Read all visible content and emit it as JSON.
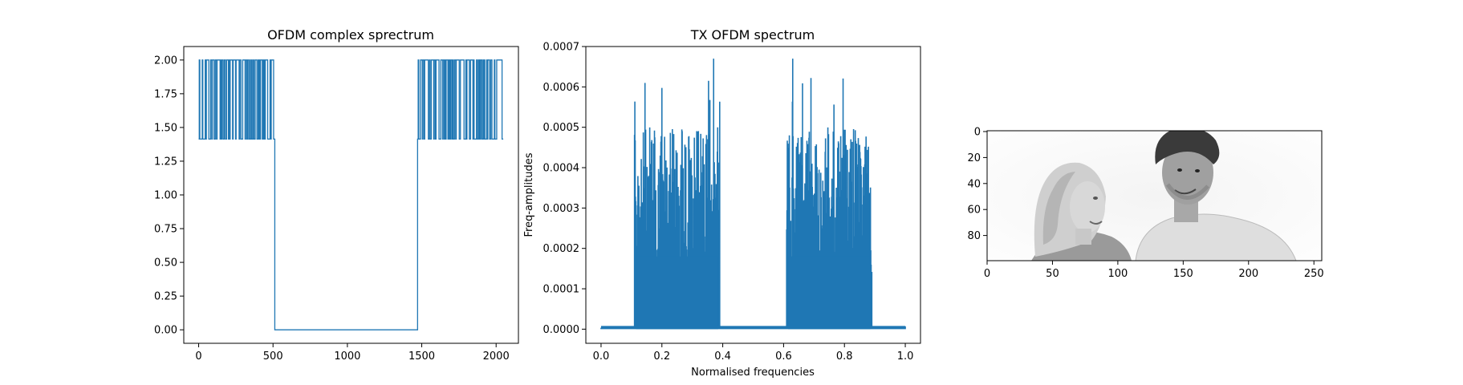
{
  "colors": {
    "series": "#1f77b4",
    "axes": "#000000"
  },
  "chart_data": [
    {
      "type": "line",
      "title": "OFDM complex sprectrum",
      "xlabel": "",
      "ylabel": "",
      "xlim": [
        -100,
        2150
      ],
      "ylim": [
        -0.1,
        2.1
      ],
      "xticks": [
        0,
        500,
        1000,
        1500,
        2000
      ],
      "xtick_labels": [
        "0",
        "500",
        "1000",
        "1500",
        "2000"
      ],
      "yticks": [
        0.0,
        0.25,
        0.5,
        0.75,
        1.0,
        1.25,
        1.5,
        1.75,
        2.0
      ],
      "ytick_labels": [
        "0.00",
        "0.25",
        "0.50",
        "0.75",
        "1.00",
        "1.25",
        "1.50",
        "1.75",
        "2.00"
      ],
      "grid": false,
      "series": [
        {
          "active_ranges": [
            [
              0,
              512
            ],
            [
              1472,
              2048
            ]
          ],
          "levels": [
            1.414,
            2.0
          ],
          "off_value": 0.0,
          "length": 2048
        }
      ]
    },
    {
      "type": "line",
      "title": "TX OFDM spectrum",
      "xlabel": "Normalised frequencies",
      "ylabel": "Freq-amplitudes",
      "xlim": [
        -0.05,
        1.05
      ],
      "ylim": [
        -3.5e-05,
        0.0007
      ],
      "xticks": [
        0.0,
        0.2,
        0.4,
        0.6,
        0.8,
        1.0
      ],
      "xtick_labels": [
        "0.0",
        "0.2",
        "0.4",
        "0.6",
        "0.8",
        "1.0"
      ],
      "yticks": [
        0.0,
        0.0001,
        0.0002,
        0.0003,
        0.0004,
        0.0005,
        0.0006,
        0.0007
      ],
      "ytick_labels": [
        "0.0000",
        "0.0001",
        "0.0002",
        "0.0003",
        "0.0004",
        "0.0005",
        "0.0006",
        "0.0007"
      ],
      "grid": false,
      "series": [
        {
          "bands": [
            [
              0.11,
              0.39
            ],
            [
              0.61,
              0.89
            ]
          ],
          "peak": 0.00067,
          "typical_max": 0.0005,
          "noise_floor": 5e-06
        }
      ]
    },
    {
      "type": "heatmap",
      "title": "",
      "xlabel": "",
      "ylabel": "",
      "xlim": [
        0,
        256
      ],
      "ylim": [
        100,
        0
      ],
      "xticks": [
        0,
        50,
        100,
        150,
        200,
        250
      ],
      "xtick_labels": [
        "0",
        "50",
        "100",
        "150",
        "200",
        "250"
      ],
      "yticks": [
        0,
        20,
        40,
        60,
        80
      ],
      "ytick_labels": [
        "0",
        "20",
        "40",
        "60",
        "80"
      ],
      "image": "grayscale photo of a woman and a man smiling at each other",
      "grid": false
    }
  ]
}
